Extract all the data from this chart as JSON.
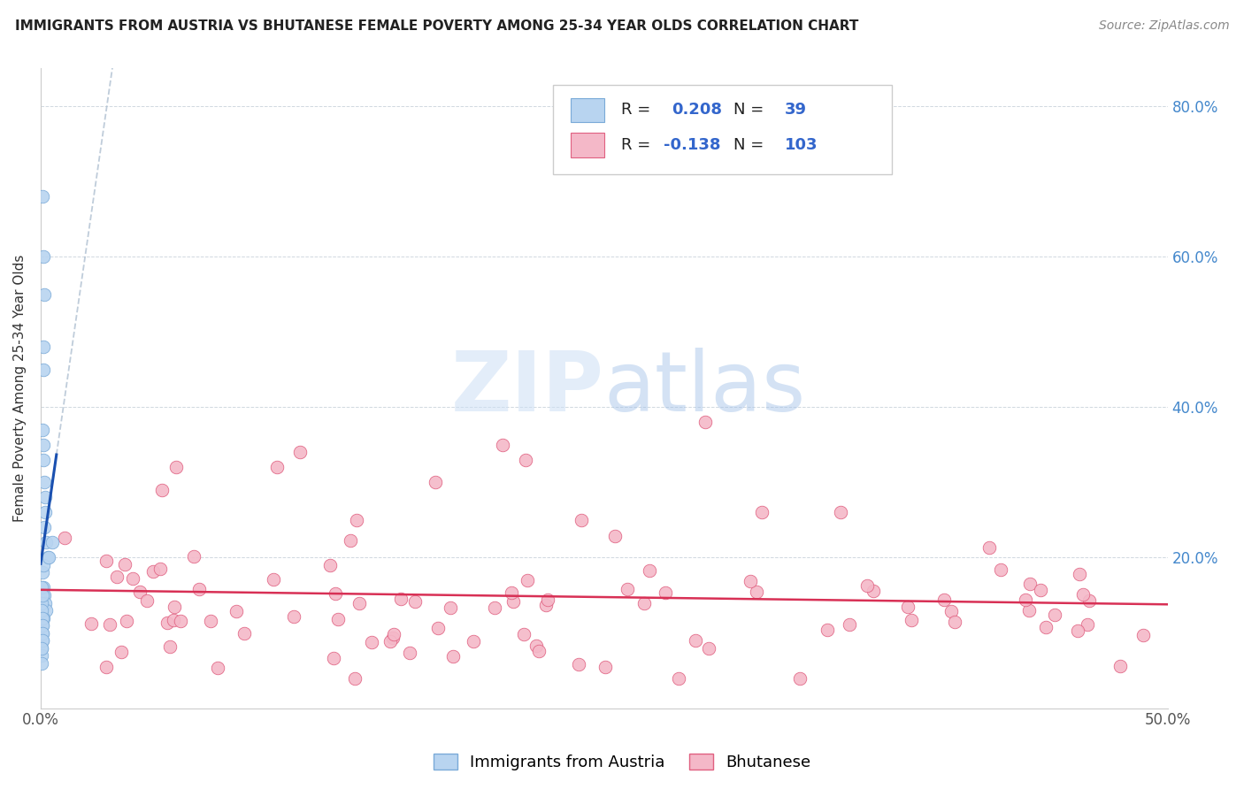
{
  "title": "IMMIGRANTS FROM AUSTRIA VS BHUTANESE FEMALE POVERTY AMONG 25-34 YEAR OLDS CORRELATION CHART",
  "source": "Source: ZipAtlas.com",
  "ylabel": "Female Poverty Among 25-34 Year Olds",
  "xlim": [
    0.0,
    0.5
  ],
  "ylim": [
    0.0,
    0.85
  ],
  "legend_labels": [
    "Immigrants from Austria",
    "Bhutanese"
  ],
  "blue_fill": "#b8d4f0",
  "pink_fill": "#f4b8c8",
  "blue_edge": "#7aaad8",
  "pink_edge": "#e06080",
  "blue_line_color": "#1a50b0",
  "pink_line_color": "#d83055",
  "blue_dash_color": "#90b8e0",
  "R_blue": "0.208",
  "N_blue": "39",
  "R_pink": "-0.138",
  "N_pink": "103",
  "watermark_zip": "ZIP",
  "watermark_atlas": "atlas",
  "title_fontsize": 11,
  "source_fontsize": 10,
  "axis_label_fontsize": 11,
  "tick_fontsize": 12,
  "legend_fontsize": 13
}
